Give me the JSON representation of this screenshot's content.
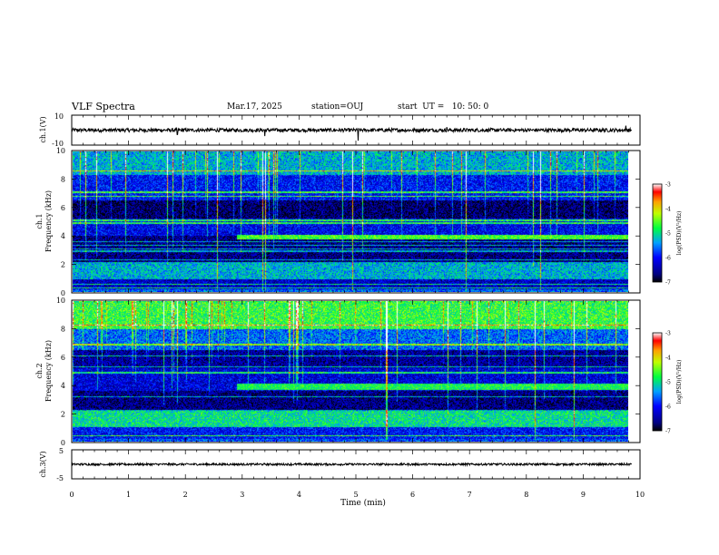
{
  "header": {
    "title": "VLF Spectra",
    "date": "Mar.17, 2025",
    "station": "station=OUJ",
    "start_ut": "start  UT =   10: 50: 0"
  },
  "colors": {
    "low": "#000080",
    "mid": "#00ff40",
    "high": "#ff0000",
    "trace": "#000000"
  },
  "chart_data": [
    {
      "type": "line",
      "name": "ch1-waveform",
      "ylabel": "ch.1(V)",
      "ylim": [
        -10,
        10
      ],
      "yticks": [
        "10",
        "-10"
      ],
      "xlim": [
        0,
        10
      ],
      "mean": 0,
      "noise_amplitude": 1.2,
      "spikes": [
        {
          "t": 1.86,
          "v": -3
        },
        {
          "t": 3.4,
          "v": -4
        },
        {
          "t": 5.04,
          "v": -7
        },
        {
          "t": 6.6,
          "v": 2
        },
        {
          "t": 9.75,
          "v": 3
        }
      ]
    },
    {
      "type": "heatmap",
      "name": "ch1-spectrogram",
      "ylabel": "ch.1\nFrequency (kHz)",
      "ylim": [
        0,
        10
      ],
      "yticks": [
        "0",
        "2",
        "4",
        "6",
        "8",
        "10"
      ],
      "xlim": [
        0,
        9.85
      ],
      "colorbar": {
        "label": "log(PSD)(V²/Hz)",
        "range": [
          -7,
          -3
        ],
        "ticks": [
          "-3",
          "-4",
          "-5",
          "-6",
          "-7"
        ]
      },
      "intensity_bands": [
        {
          "f": [
            0,
            0.2
          ],
          "level": -5.6
        },
        {
          "f": [
            0.2,
            0.9
          ],
          "level": -6.3
        },
        {
          "f": [
            0.9,
            2.1
          ],
          "level": -5.3
        },
        {
          "f": [
            2.1,
            4.0
          ],
          "level": -6.6
        },
        {
          "f": [
            4.0,
            5.2
          ],
          "level": -6.1
        },
        {
          "f": [
            5.2,
            6.5
          ],
          "level": -6.7
        },
        {
          "f": [
            6.5,
            8.3
          ],
          "level": -6.0
        },
        {
          "f": [
            8.3,
            10
          ],
          "level": -5.3
        }
      ],
      "tone_lines_khz": [
        0.3,
        0.55,
        2.3,
        2.9,
        3.05,
        3.3,
        3.6,
        4.9,
        5.1,
        6.8,
        7.1,
        8.6
      ],
      "emission_band": {
        "t": [
          2.9,
          9.85
        ],
        "f": [
          3.75,
          4.05
        ],
        "level": -4.6
      }
    },
    {
      "type": "heatmap",
      "name": "ch2-spectrogram",
      "ylabel": "ch.2\nFrequency (kHz)",
      "ylim": [
        0,
        10
      ],
      "yticks": [
        "0",
        "2",
        "4",
        "6",
        "8",
        "10"
      ],
      "xlim": [
        0,
        9.85
      ],
      "colorbar": {
        "label": "log(PSD)(V²/Hz)",
        "range": [
          -7,
          -3
        ],
        "ticks": [
          "-3",
          "-4",
          "-5",
          "-6",
          "-7"
        ]
      },
      "intensity_bands": [
        {
          "f": [
            0,
            0.2
          ],
          "level": -5.7
        },
        {
          "f": [
            0.2,
            1.0
          ],
          "level": -6.0
        },
        {
          "f": [
            1.0,
            2.2
          ],
          "level": -5.0
        },
        {
          "f": [
            2.2,
            3.6
          ],
          "level": -6.6
        },
        {
          "f": [
            3.6,
            5.2
          ],
          "level": -6.2
        },
        {
          "f": [
            5.2,
            6.5
          ],
          "level": -6.5
        },
        {
          "f": [
            6.5,
            8.0
          ],
          "level": -5.6
        },
        {
          "f": [
            8.0,
            10
          ],
          "level": -4.7
        }
      ],
      "tone_lines_khz": [
        0.4,
        2.25,
        3.2,
        4.9,
        5.3,
        6.1,
        6.9,
        8.3
      ],
      "emission_band": {
        "t": [
          2.9,
          9.85
        ],
        "f": [
          3.7,
          4.1
        ],
        "level": -4.8
      }
    },
    {
      "type": "line",
      "name": "ch3-waveform",
      "ylabel": "ch.3(V)",
      "ylim": [
        -5,
        5
      ],
      "yticks": [
        "5",
        "-5"
      ],
      "xlim": [
        0,
        10
      ],
      "mean": 0,
      "noise_amplitude": 0.35,
      "spikes": []
    }
  ],
  "xaxis": {
    "label": "Time  (min)",
    "ticks": [
      "0",
      "1",
      "2",
      "3",
      "4",
      "5",
      "6",
      "7",
      "8",
      "9",
      "10"
    ]
  }
}
